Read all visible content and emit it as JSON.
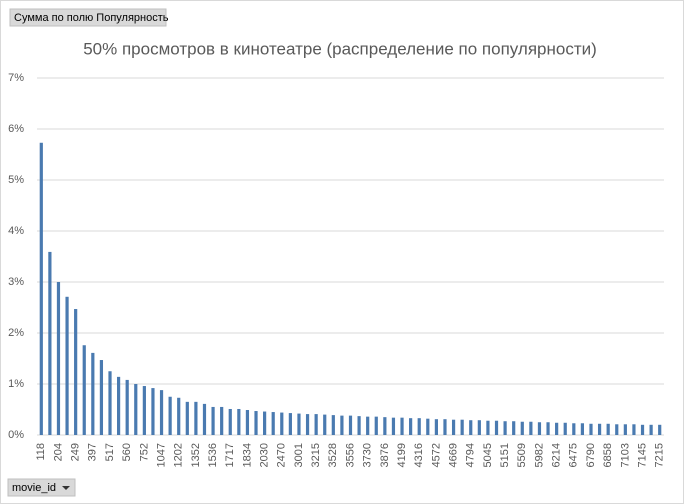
{
  "pivot": {
    "value_field": "Сумма по полю Популярность",
    "axis_field": "movie_id"
  },
  "chart_data": {
    "type": "bar",
    "title": "50% просмотров в кинотеатре (распределение по популярности)",
    "color": "#4a7ab0",
    "grid": true,
    "ylim": [
      0,
      7
    ],
    "yticks": [
      {
        "value": 0,
        "label": "0%"
      },
      {
        "value": 1,
        "label": "1%"
      },
      {
        "value": 2,
        "label": "2%"
      },
      {
        "value": 3,
        "label": "3%"
      },
      {
        "value": 4,
        "label": "4%"
      },
      {
        "value": 5,
        "label": "5%"
      },
      {
        "value": 6,
        "label": "6%"
      },
      {
        "value": 7,
        "label": "7%"
      }
    ],
    "categories": [
      "118",
      null,
      "204",
      null,
      "249",
      null,
      "397",
      null,
      "517",
      null,
      "560",
      null,
      "752",
      null,
      "1047",
      null,
      "1202",
      null,
      "1352",
      null,
      "1536",
      null,
      "1717",
      null,
      "1834",
      null,
      "2030",
      null,
      "2470",
      null,
      "3001",
      null,
      "3215",
      null,
      "3528",
      null,
      "3556",
      null,
      "3730",
      null,
      "3876",
      null,
      "4199",
      null,
      "4316",
      null,
      "4572",
      null,
      "4669",
      null,
      "4794",
      null,
      "5045",
      null,
      "5151",
      null,
      "5509",
      null,
      "5982",
      null,
      "6214",
      null,
      "6475",
      null,
      "6790",
      null,
      "6858",
      null,
      "7103",
      null,
      "7145",
      null,
      "7215"
    ],
    "values": [
      5.73,
      3.59,
      3.0,
      2.71,
      2.47,
      1.76,
      1.61,
      1.47,
      1.25,
      1.14,
      1.08,
      1.0,
      0.96,
      0.92,
      0.88,
      0.75,
      0.73,
      0.65,
      0.65,
      0.61,
      0.55,
      0.55,
      0.51,
      0.51,
      0.49,
      0.47,
      0.46,
      0.45,
      0.44,
      0.43,
      0.42,
      0.41,
      0.41,
      0.4,
      0.39,
      0.38,
      0.38,
      0.37,
      0.36,
      0.36,
      0.35,
      0.34,
      0.34,
      0.33,
      0.33,
      0.32,
      0.31,
      0.31,
      0.3,
      0.3,
      0.29,
      0.29,
      0.28,
      0.28,
      0.27,
      0.27,
      0.26,
      0.26,
      0.25,
      0.25,
      0.24,
      0.24,
      0.23,
      0.23,
      0.22,
      0.22,
      0.22,
      0.21,
      0.21,
      0.21,
      0.2,
      0.2,
      0.2
    ]
  }
}
